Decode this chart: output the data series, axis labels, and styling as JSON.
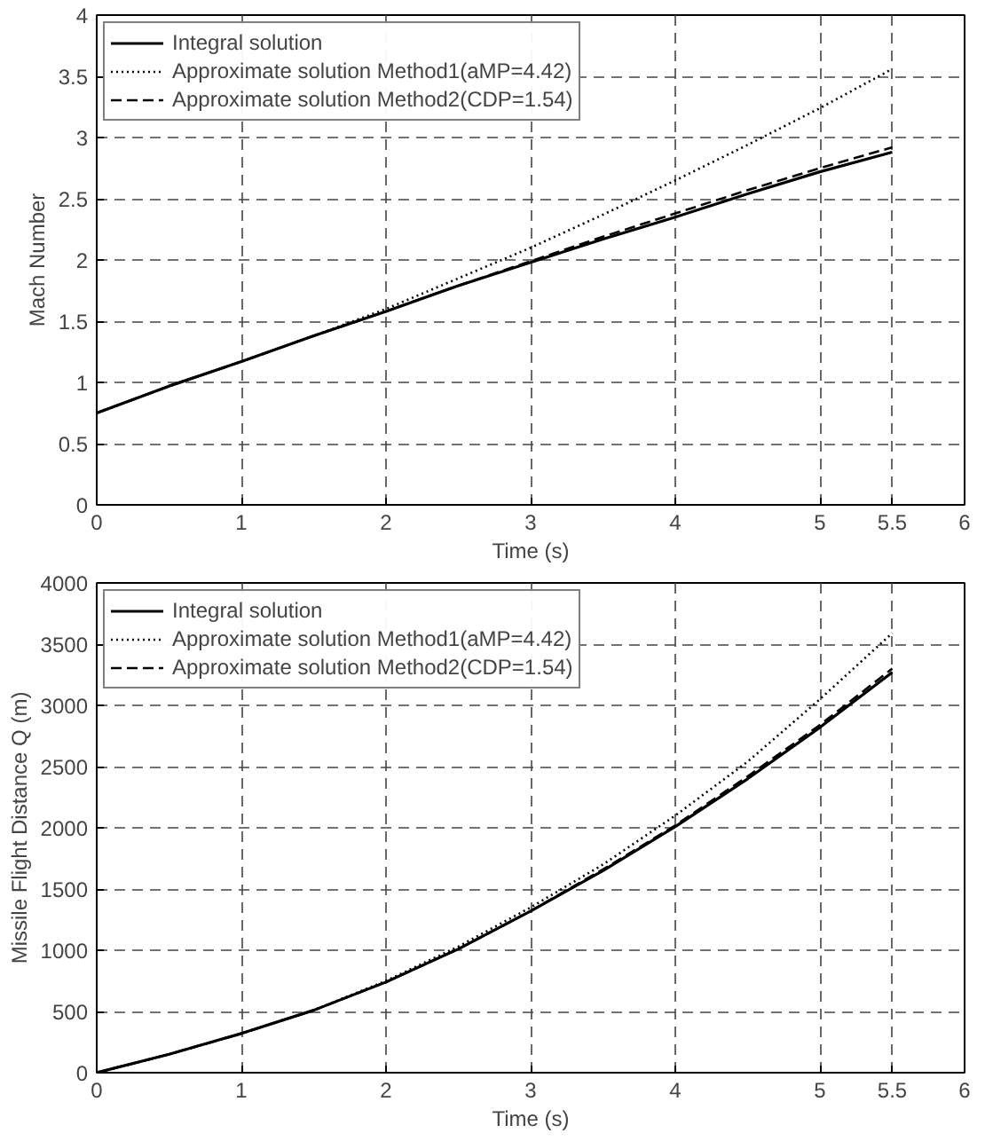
{
  "chart_data": [
    {
      "type": "line",
      "xlabel": "Time (s)",
      "ylabel": "Mach Number",
      "x": [
        0,
        0.5,
        1,
        1.5,
        2,
        2.5,
        3,
        3.5,
        4,
        4.5,
        5,
        5.5
      ],
      "series": [
        {
          "name": "Integral solution",
          "color": "#000000",
          "line_style": "solid",
          "values": [
            0.75,
            0.97,
            1.17,
            1.38,
            1.58,
            1.79,
            1.98,
            2.17,
            2.35,
            2.54,
            2.72,
            2.88
          ]
        },
        {
          "name": "Approximate solution Method1(aMP=4.42)",
          "color": "#000000",
          "line_style": "dotted",
          "values": [
            0.75,
            0.97,
            1.17,
            1.38,
            1.6,
            1.85,
            2.1,
            2.37,
            2.65,
            2.94,
            3.24,
            3.56
          ]
        },
        {
          "name": "Approximate solution Method2(CDP=1.54)",
          "color": "#000000",
          "line_style": "dashed",
          "values": [
            0.75,
            0.97,
            1.17,
            1.38,
            1.58,
            1.79,
            1.99,
            2.19,
            2.38,
            2.57,
            2.75,
            2.92
          ]
        }
      ],
      "xlim": [
        0,
        6
      ],
      "xticks": [
        0,
        1,
        2,
        3,
        4,
        5,
        5.5,
        6
      ],
      "ylim": [
        0,
        4
      ],
      "yticks": [
        0,
        0.5,
        1,
        1.5,
        2,
        2.5,
        3,
        3.5,
        4
      ],
      "grid": true,
      "legend": "top left"
    },
    {
      "type": "line",
      "xlabel": "Time (s)",
      "ylabel": "Missile Flight Distance Q (m)",
      "x": [
        0,
        0.5,
        1,
        1.5,
        2,
        2.5,
        3,
        3.5,
        4,
        4.5,
        5,
        5.5
      ],
      "series": [
        {
          "name": "Integral solution",
          "color": "#000000",
          "line_style": "solid",
          "values": [
            0,
            150,
            320,
            510,
            740,
            1010,
            1320,
            1650,
            2010,
            2400,
            2820,
            3270
          ]
        },
        {
          "name": "Approximate solution Method1(aMP=4.42)",
          "color": "#000000",
          "line_style": "dotted",
          "values": [
            0,
            150,
            320,
            510,
            750,
            1030,
            1350,
            1700,
            2100,
            2540,
            3050,
            3590
          ]
        },
        {
          "name": "Approximate solution Method2(CDP=1.54)",
          "color": "#000000",
          "line_style": "dashed",
          "values": [
            0,
            150,
            320,
            510,
            740,
            1010,
            1320,
            1660,
            2020,
            2420,
            2840,
            3300
          ]
        }
      ],
      "xlim": [
        0,
        6
      ],
      "xticks": [
        0,
        1,
        2,
        3,
        4,
        5,
        5.5,
        6
      ],
      "ylim": [
        0,
        4000
      ],
      "yticks": [
        0,
        500,
        1000,
        1500,
        2000,
        2500,
        3000,
        3500,
        4000
      ],
      "grid": true,
      "legend": "top left"
    }
  ]
}
